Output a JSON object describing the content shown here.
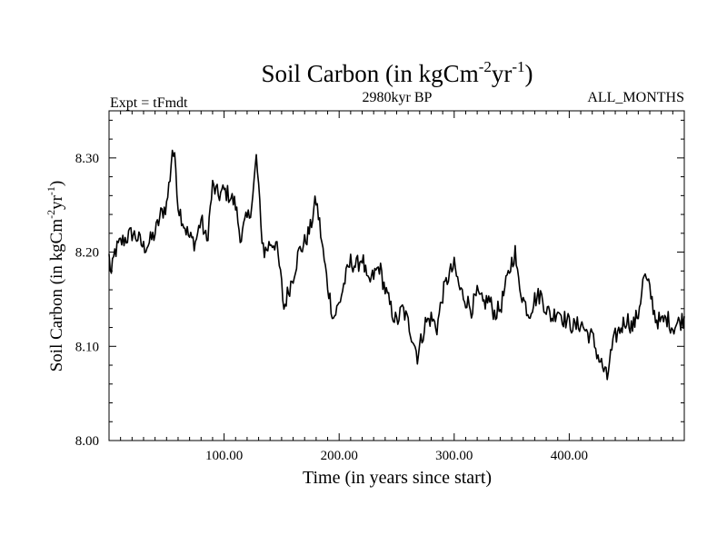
{
  "colors": {
    "line": "#000000",
    "background": "#ffffff"
  },
  "chart_data": {
    "type": "line",
    "title": {
      "main": "Soil Carbon (in kgCm",
      "sup1": "-2",
      "mid": "yr",
      "sup2": "-1",
      "end": ")"
    },
    "ylabel": {
      "main": "Soil Carbon (in kgCm",
      "sup1": "-2",
      "mid": "yr",
      "sup2": "-1",
      "end": ")"
    },
    "xlabel": "Time (in years since start)",
    "subtitle_left": "Expt = tFmdt",
    "subtitle_center": "2980kyr BP",
    "subtitle_right": "ALL_MONTHS",
    "xlim": [
      0,
      500
    ],
    "ylim": [
      8.0,
      8.35
    ],
    "x_ticks": [
      {
        "value": 100,
        "label": "100.00"
      },
      {
        "value": 200,
        "label": "200.00"
      },
      {
        "value": 300,
        "label": "300.00"
      },
      {
        "value": 400,
        "label": "400.00"
      }
    ],
    "y_ticks": [
      {
        "value": 8.0,
        "label": "8.00"
      },
      {
        "value": 8.1,
        "label": "8.10"
      },
      {
        "value": 8.2,
        "label": "8.20"
      },
      {
        "value": 8.3,
        "label": "8.30"
      }
    ],
    "grid": false,
    "series": [
      {
        "name": "Soil Carbon",
        "anchor_x": [
          0,
          2,
          5,
          10,
          15,
          20,
          25,
          30,
          35,
          40,
          45,
          50,
          53,
          55,
          58,
          60,
          65,
          70,
          75,
          80,
          85,
          90,
          95,
          100,
          105,
          110,
          113,
          115,
          118,
          122,
          125,
          128,
          130,
          132,
          135,
          138,
          140,
          145,
          148,
          150,
          152,
          155,
          160,
          165,
          170,
          175,
          178,
          180,
          183,
          186,
          190,
          195,
          200,
          205,
          210,
          215,
          220,
          225,
          230,
          235,
          240,
          245,
          250,
          255,
          260,
          265,
          268,
          270,
          275,
          280,
          285,
          290,
          295,
          300,
          305,
          310,
          315,
          320,
          325,
          330,
          335,
          340,
          345,
          350,
          353,
          355,
          360,
          365,
          370,
          375,
          380,
          385,
          390,
          395,
          400,
          405,
          410,
          415,
          420,
          425,
          430,
          433,
          435,
          440,
          445,
          450,
          455,
          460,
          465,
          470,
          475,
          480,
          485,
          490,
          495,
          500
        ],
        "anchor_y": [
          8.195,
          8.175,
          8.2,
          8.21,
          8.215,
          8.22,
          8.215,
          8.205,
          8.21,
          8.22,
          8.24,
          8.25,
          8.28,
          8.31,
          8.29,
          8.25,
          8.23,
          8.215,
          8.21,
          8.235,
          8.21,
          8.27,
          8.26,
          8.265,
          8.26,
          8.25,
          8.225,
          8.215,
          8.23,
          8.24,
          8.26,
          8.3,
          8.27,
          8.225,
          8.2,
          8.205,
          8.21,
          8.21,
          8.185,
          8.165,
          8.14,
          8.155,
          8.175,
          8.2,
          8.21,
          8.225,
          8.245,
          8.255,
          8.23,
          8.2,
          8.165,
          8.13,
          8.145,
          8.17,
          8.19,
          8.185,
          8.195,
          8.165,
          8.175,
          8.185,
          8.16,
          8.14,
          8.125,
          8.14,
          8.125,
          8.105,
          8.09,
          8.1,
          8.125,
          8.13,
          8.12,
          8.155,
          8.175,
          8.185,
          8.16,
          8.15,
          8.14,
          8.155,
          8.145,
          8.15,
          8.135,
          8.14,
          8.165,
          8.19,
          8.2,
          8.175,
          8.15,
          8.135,
          8.15,
          8.155,
          8.14,
          8.13,
          8.14,
          8.13,
          8.125,
          8.12,
          8.125,
          8.115,
          8.11,
          8.09,
          8.075,
          8.065,
          8.085,
          8.11,
          8.12,
          8.13,
          8.12,
          8.135,
          8.175,
          8.16,
          8.13,
          8.125,
          8.13,
          8.12,
          8.125,
          8.13
        ],
        "samples": 500,
        "noise": 0.01
      }
    ]
  }
}
